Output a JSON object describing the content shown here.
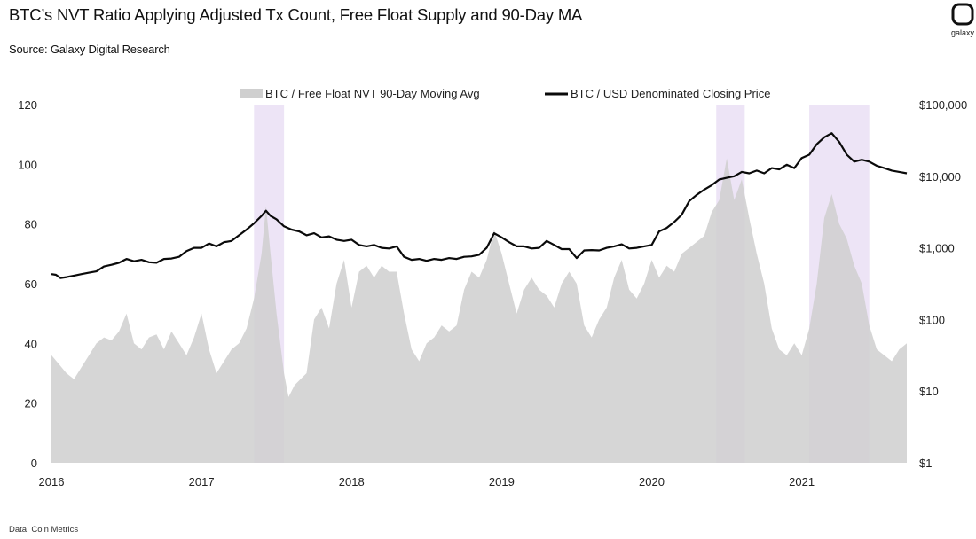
{
  "header": {
    "title": "BTC’s NVT Ratio Applying Adjusted Tx Count, Free Float Supply and 90-Day MA",
    "subtitle": "Source: Galaxy Digital Research",
    "footnote": "Data: Coin Metrics"
  },
  "logo": {
    "name": "galaxy",
    "icon": "galaxy-logo-icon"
  },
  "colors": {
    "area": "#cfcfcf",
    "line": "#0a0a0a",
    "highlight": "#ede4f6",
    "axis": "#222222"
  },
  "chart_data": {
    "type": "area",
    "title": "BTC’s NVT Ratio Applying Adjusted Tx Count, Free Float Supply and 90-Day MA",
    "x_ticks": [
      "2016",
      "2017",
      "2018",
      "2019",
      "2020",
      "2021"
    ],
    "xlim": [
      2016.0,
      2021.7
    ],
    "left_axis": {
      "min": 0,
      "max": 120,
      "ticks": [
        0,
        20,
        40,
        60,
        80,
        100,
        120
      ]
    },
    "right_axis": {
      "scale": "log",
      "min": 1,
      "max": 100000,
      "ticks": [
        1,
        10,
        100,
        1000,
        10000,
        100000
      ],
      "tick_labels": [
        "$1",
        "$10",
        "$100",
        "$1,000",
        "$10,000",
        "$100,000"
      ]
    },
    "legend": [
      "BTC / Free Float NVT 90-Day Moving Avg",
      "BTC / USD Denominated Closing Price"
    ],
    "legend_position": "top-center",
    "shaded_periods": [
      [
        2017.35,
        2017.55
      ],
      [
        2020.43,
        2020.62
      ],
      [
        2021.05,
        2021.45
      ]
    ],
    "series": [
      {
        "name": "BTC / Free Float NVT 90-Day Moving Avg",
        "axis": "left",
        "kind": "area",
        "x": [
          2016.0,
          2016.05,
          2016.1,
          2016.15,
          2016.2,
          2016.25,
          2016.3,
          2016.35,
          2016.4,
          2016.45,
          2016.5,
          2016.55,
          2016.6,
          2016.65,
          2016.7,
          2016.75,
          2016.8,
          2016.85,
          2016.9,
          2016.95,
          2017.0,
          2017.05,
          2017.1,
          2017.15,
          2017.2,
          2017.25,
          2017.3,
          2017.35,
          2017.4,
          2017.43,
          2017.46,
          2017.5,
          2017.55,
          2017.58,
          2017.62,
          2017.66,
          2017.7,
          2017.75,
          2017.8,
          2017.85,
          2017.9,
          2017.95,
          2018.0,
          2018.05,
          2018.1,
          2018.15,
          2018.2,
          2018.25,
          2018.3,
          2018.35,
          2018.4,
          2018.45,
          2018.5,
          2018.55,
          2018.6,
          2018.65,
          2018.7,
          2018.75,
          2018.8,
          2018.85,
          2018.9,
          2018.95,
          2019.0,
          2019.05,
          2019.1,
          2019.15,
          2019.2,
          2019.25,
          2019.3,
          2019.35,
          2019.4,
          2019.45,
          2019.5,
          2019.55,
          2019.6,
          2019.65,
          2019.7,
          2019.75,
          2019.8,
          2019.85,
          2019.9,
          2019.95,
          2020.0,
          2020.05,
          2020.1,
          2020.15,
          2020.2,
          2020.25,
          2020.3,
          2020.35,
          2020.4,
          2020.45,
          2020.5,
          2020.55,
          2020.6,
          2020.65,
          2020.7,
          2020.75,
          2020.8,
          2020.85,
          2020.9,
          2020.95,
          2021.0,
          2021.05,
          2021.1,
          2021.15,
          2021.2,
          2021.25,
          2021.3,
          2021.35,
          2021.4,
          2021.45,
          2021.5,
          2021.55,
          2021.6,
          2021.65,
          2021.7
        ],
        "values": [
          36,
          33,
          30,
          28,
          32,
          36,
          40,
          42,
          41,
          44,
          50,
          40,
          38,
          42,
          43,
          38,
          44,
          40,
          36,
          42,
          50,
          38,
          30,
          34,
          38,
          40,
          45,
          55,
          70,
          86,
          70,
          50,
          30,
          22,
          26,
          28,
          30,
          48,
          52,
          45,
          60,
          68,
          52,
          64,
          66,
          62,
          66,
          64,
          64,
          50,
          38,
          34,
          40,
          42,
          46,
          44,
          46,
          58,
          64,
          62,
          68,
          78,
          70,
          60,
          50,
          58,
          62,
          58,
          56,
          52,
          60,
          64,
          60,
          46,
          42,
          48,
          52,
          62,
          68,
          58,
          55,
          60,
          68,
          62,
          66,
          64,
          70,
          72,
          74,
          76,
          84,
          88,
          102,
          88,
          95,
          82,
          70,
          60,
          45,
          38,
          36,
          40,
          36,
          45,
          60,
          82,
          90,
          80,
          75,
          66,
          60,
          46,
          38,
          36,
          34,
          38,
          40
        ]
      },
      {
        "name": "BTC / USD Denominated Closing Price",
        "axis": "right",
        "kind": "line",
        "x": [
          2016.0,
          2016.03,
          2016.06,
          2016.1,
          2016.15,
          2016.2,
          2016.25,
          2016.3,
          2016.35,
          2016.4,
          2016.45,
          2016.5,
          2016.55,
          2016.6,
          2016.65,
          2016.7,
          2016.75,
          2016.8,
          2016.85,
          2016.9,
          2016.95,
          2017.0,
          2017.05,
          2017.1,
          2017.15,
          2017.2,
          2017.25,
          2017.3,
          2017.35,
          2017.4,
          2017.43,
          2017.46,
          2017.5,
          2017.55,
          2017.6,
          2017.65,
          2017.7,
          2017.75,
          2017.8,
          2017.85,
          2017.9,
          2017.95,
          2018.0,
          2018.05,
          2018.1,
          2018.15,
          2018.2,
          2018.25,
          2018.3,
          2018.35,
          2018.4,
          2018.45,
          2018.5,
          2018.55,
          2018.6,
          2018.65,
          2018.7,
          2018.75,
          2018.8,
          2018.85,
          2018.9,
          2018.95,
          2019.0,
          2019.05,
          2019.1,
          2019.15,
          2019.2,
          2019.25,
          2019.3,
          2019.35,
          2019.4,
          2019.45,
          2019.5,
          2019.55,
          2019.6,
          2019.65,
          2019.7,
          2019.75,
          2019.8,
          2019.85,
          2019.9,
          2019.95,
          2020.0,
          2020.05,
          2020.1,
          2020.15,
          2020.2,
          2020.25,
          2020.3,
          2020.35,
          2020.4,
          2020.45,
          2020.5,
          2020.55,
          2020.6,
          2020.65,
          2020.7,
          2020.75,
          2020.8,
          2020.85,
          2020.9,
          2020.95,
          2021.0,
          2021.05,
          2021.1,
          2021.15,
          2021.2,
          2021.25,
          2021.3,
          2021.35,
          2021.4,
          2021.45,
          2021.5,
          2021.55,
          2021.6,
          2021.65,
          2021.7
        ],
        "values": [
          430,
          420,
          380,
          390,
          410,
          430,
          450,
          470,
          550,
          580,
          620,
          700,
          650,
          680,
          630,
          620,
          700,
          710,
          750,
          900,
          1000,
          1000,
          1150,
          1050,
          1200,
          1250,
          1500,
          1800,
          2200,
          2800,
          3300,
          2800,
          2500,
          2000,
          1800,
          1700,
          1500,
          1600,
          1400,
          1450,
          1300,
          1250,
          1300,
          1100,
          1050,
          1100,
          1000,
          980,
          1050,
          750,
          680,
          700,
          660,
          700,
          680,
          720,
          700,
          750,
          760,
          800,
          1000,
          1600,
          1400,
          1200,
          1050,
          1050,
          980,
          1000,
          1250,
          1100,
          960,
          960,
          720,
          920,
          930,
          920,
          1000,
          1050,
          1120,
          980,
          1000,
          1050,
          1100,
          1700,
          1900,
          2300,
          2900,
          4500,
          5500,
          6500,
          7500,
          9000,
          9500,
          10000,
          11500,
          11000,
          12000,
          11000,
          13000,
          12500,
          14500,
          13000,
          18000,
          20000,
          28000,
          35000,
          40000,
          30000,
          20000,
          16000,
          17000,
          16000,
          14000,
          13000,
          12000,
          11500,
          11000
        ]
      }
    ]
  }
}
